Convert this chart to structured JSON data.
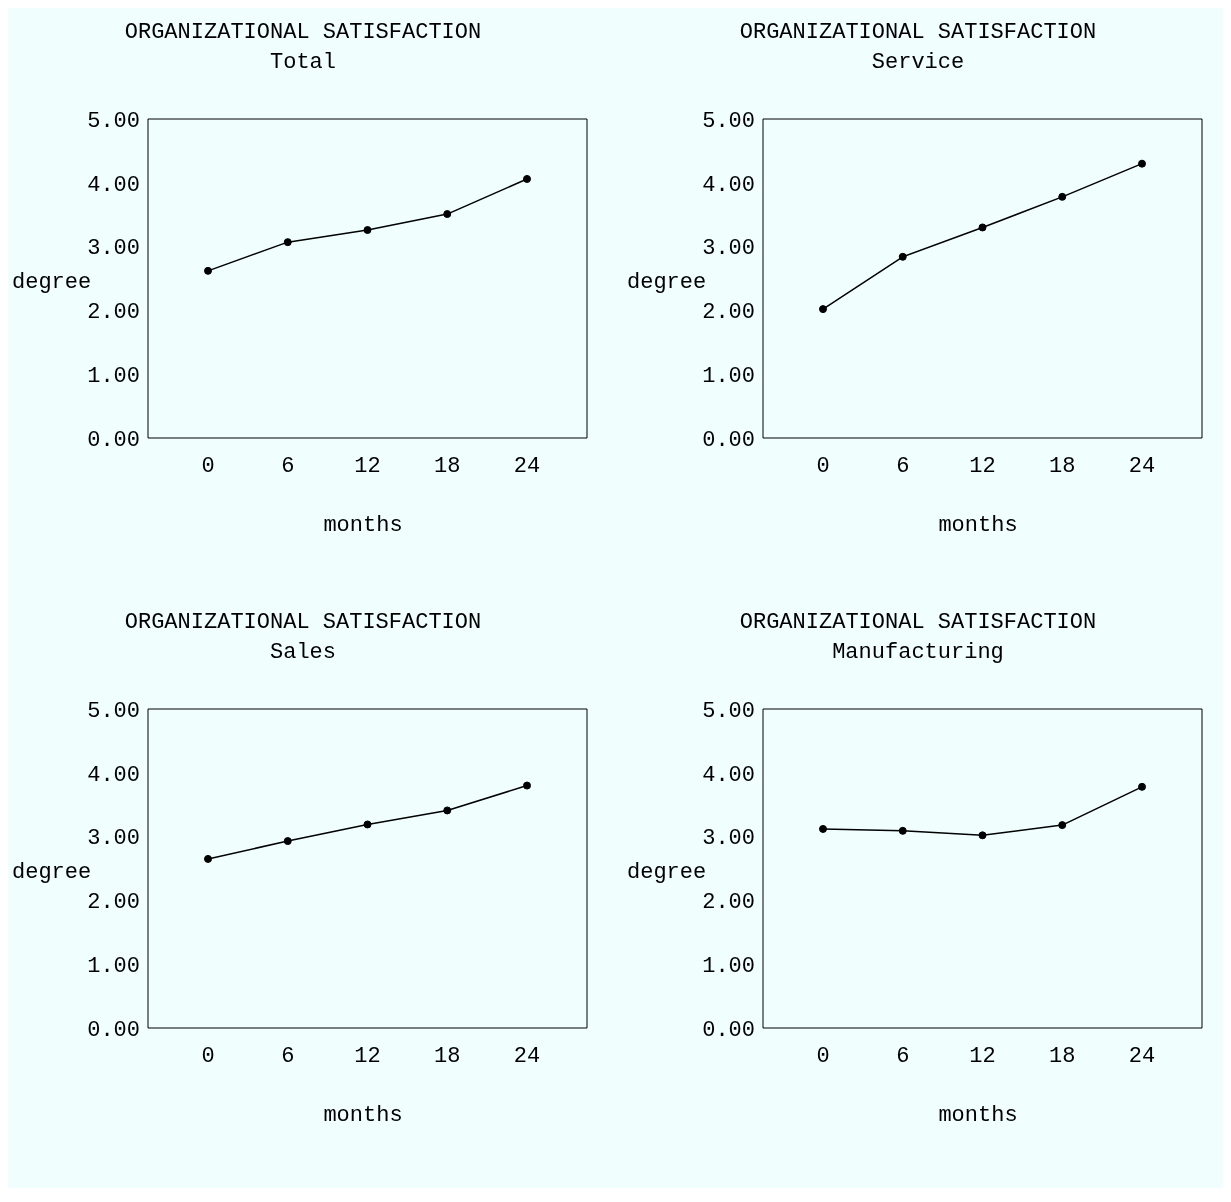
{
  "chart_data": [
    {
      "type": "line",
      "title": "ORGANIZATIONAL SATISFACTION",
      "subtitle": "Total",
      "xlabel": "months",
      "ylabel": "degree",
      "categories": [
        "0",
        "6",
        "12",
        "18",
        "24"
      ],
      "series": [
        {
          "color": "#000000",
          "values": [
            2.62,
            3.07,
            3.26,
            3.51,
            4.06
          ]
        }
      ],
      "ylim": [
        0,
        5
      ],
      "yticks": [
        {
          "value": 0,
          "label": "0.00"
        },
        {
          "value": 1,
          "label": "1.00"
        },
        {
          "value": 2,
          "label": "2.00"
        },
        {
          "value": 3,
          "label": "3.00"
        },
        {
          "value": 4,
          "label": "4.00"
        },
        {
          "value": 5,
          "label": "5.00"
        }
      ],
      "marker": "circle",
      "line_style": "solid"
    },
    {
      "type": "line",
      "title": "ORGANIZATIONAL SATISFACTION",
      "subtitle": "Service",
      "xlabel": "months",
      "ylabel": "degree",
      "categories": [
        "0",
        "6",
        "12",
        "18",
        "24"
      ],
      "series": [
        {
          "color": "#000000",
          "values": [
            2.02,
            2.84,
            3.3,
            3.78,
            4.3
          ]
        }
      ],
      "ylim": [
        0,
        5
      ],
      "yticks": [
        {
          "value": 0,
          "label": "0.00"
        },
        {
          "value": 1,
          "label": "1.00"
        },
        {
          "value": 2,
          "label": "2.00"
        },
        {
          "value": 3,
          "label": "3.00"
        },
        {
          "value": 4,
          "label": "4.00"
        },
        {
          "value": 5,
          "label": "5.00"
        }
      ],
      "marker": "circle",
      "line_style": "solid"
    },
    {
      "type": "line",
      "title": "ORGANIZATIONAL SATISFACTION",
      "subtitle": "Sales",
      "xlabel": "months",
      "ylabel": "degree",
      "categories": [
        "0",
        "6",
        "12",
        "18",
        "24"
      ],
      "series": [
        {
          "color": "#000000",
          "values": [
            2.65,
            2.93,
            3.19,
            3.41,
            3.8
          ]
        }
      ],
      "ylim": [
        0,
        5
      ],
      "yticks": [
        {
          "value": 0,
          "label": "0.00"
        },
        {
          "value": 1,
          "label": "1.00"
        },
        {
          "value": 2,
          "label": "2.00"
        },
        {
          "value": 3,
          "label": "3.00"
        },
        {
          "value": 4,
          "label": "4.00"
        },
        {
          "value": 5,
          "label": "5.00"
        }
      ],
      "marker": "circle",
      "line_style": "solid"
    },
    {
      "type": "line",
      "title": "ORGANIZATIONAL SATISFACTION",
      "subtitle": "Manufacturing",
      "xlabel": "months",
      "ylabel": "degree",
      "categories": [
        "0",
        "6",
        "12",
        "18",
        "24"
      ],
      "series": [
        {
          "color": "#000000",
          "values": [
            3.12,
            3.09,
            3.02,
            3.18,
            3.78
          ]
        }
      ],
      "ylim": [
        0,
        5
      ],
      "yticks": [
        {
          "value": 0,
          "label": "0.00"
        },
        {
          "value": 1,
          "label": "1.00"
        },
        {
          "value": 2,
          "label": "2.00"
        },
        {
          "value": 3,
          "label": "3.00"
        },
        {
          "value": 4,
          "label": "4.00"
        },
        {
          "value": 5,
          "label": "5.00"
        }
      ],
      "marker": "circle",
      "line_style": "solid"
    }
  ]
}
